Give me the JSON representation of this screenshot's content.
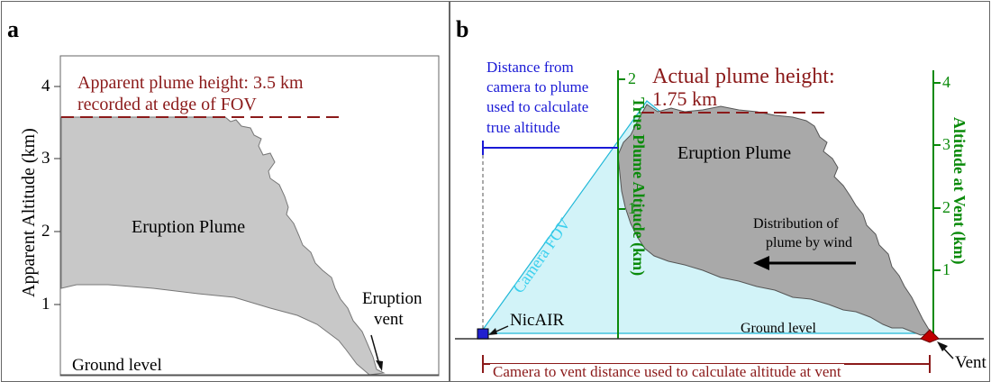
{
  "panel_a": {
    "letter": "a",
    "y_axis_label": "Apparent Altitude (km)",
    "y_ticks": [
      "4",
      "3",
      "2",
      "1"
    ],
    "apparent_height_line1": "Apparent plume height: 3.5 km",
    "apparent_height_line2": "recorded at edge of FOV",
    "plume_label": "Eruption Plume",
    "vent_label_line1": "Eruption",
    "vent_label_line2": "vent",
    "ground_label": "Ground level"
  },
  "panel_b": {
    "letter": "b",
    "distance_note": [
      "Distance from",
      "camera to plume",
      "used to calculate",
      "true altitude"
    ],
    "actual_height_line1": "Actual plume height:",
    "actual_height_line2": "1.75 km",
    "plume_label": "Eruption Plume",
    "true_axis_label": "True Plume Altitude (km)",
    "true_ticks": [
      "2",
      "1"
    ],
    "vent_axis_label": "Altitude at Vent (km)",
    "vent_ticks": [
      "4",
      "3",
      "2",
      "1"
    ],
    "fov_label": "Camera FOV",
    "wind_line1": "Distribution of",
    "wind_line2": "plume by wind",
    "nicair_label": "NicAIR",
    "ground_label": "Ground level",
    "camera_vent_label": "Camera to vent distance used to calculate altitude at vent",
    "vent_label": "Vent"
  },
  "colors": {
    "plume": "#c8c8c8",
    "plume_b": "#a9a9a9",
    "fov_fill": "#d2f3f8",
    "fov_stroke": "#20b8d8",
    "red": "#8b1a1a",
    "blue": "#1a1ad6",
    "green": "#0a8a0a",
    "camera": "#2020d0",
    "vent": "#c00000"
  }
}
